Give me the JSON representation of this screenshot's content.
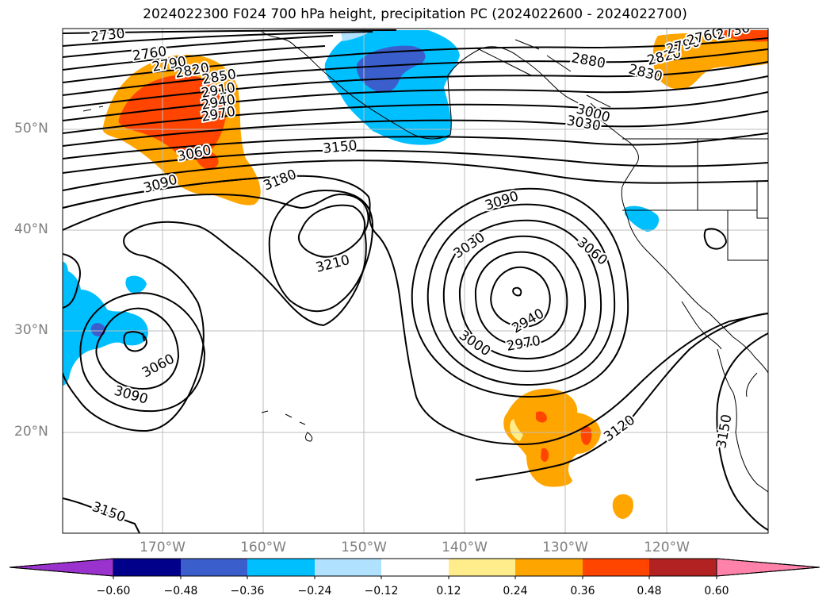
{
  "title": "2024022300 F024 700 hPa height, precipitation PC (2024022600 - 2024022700)",
  "lat_labels": [
    "50°N",
    "40°N",
    "30°N",
    "20°N"
  ],
  "lon_labels": [
    "170°W",
    "160°W",
    "150°W",
    "140°W",
    "130°W",
    "120°W"
  ],
  "colorbar": {
    "ticks": [
      "−0.60",
      "−0.48",
      "−0.36",
      "−0.24",
      "−0.12",
      "0.12",
      "0.24",
      "0.36",
      "0.48",
      "0.60"
    ],
    "colors": [
      "#9a32cd",
      "#00008b",
      "#3a5fcd",
      "#00bfff",
      "#b0e2ff",
      "#ffffff",
      "#ffec8b",
      "#ffa500",
      "#ff4500",
      "#b22222",
      "#ff82ab"
    ]
  },
  "contour_labels": [
    "2730",
    "2760",
    "2790",
    "2820",
    "2850",
    "2910",
    "2940",
    "2970",
    "3060",
    "3090",
    "3150",
    "3180",
    "3210",
    "3090",
    "3030",
    "3060",
    "2940",
    "2970",
    "3000",
    "3060",
    "3090",
    "3120",
    "3150",
    "2880",
    "2830",
    "2820",
    "2790",
    "2760",
    "2730",
    "3000",
    "3030",
    "3150"
  ]
}
